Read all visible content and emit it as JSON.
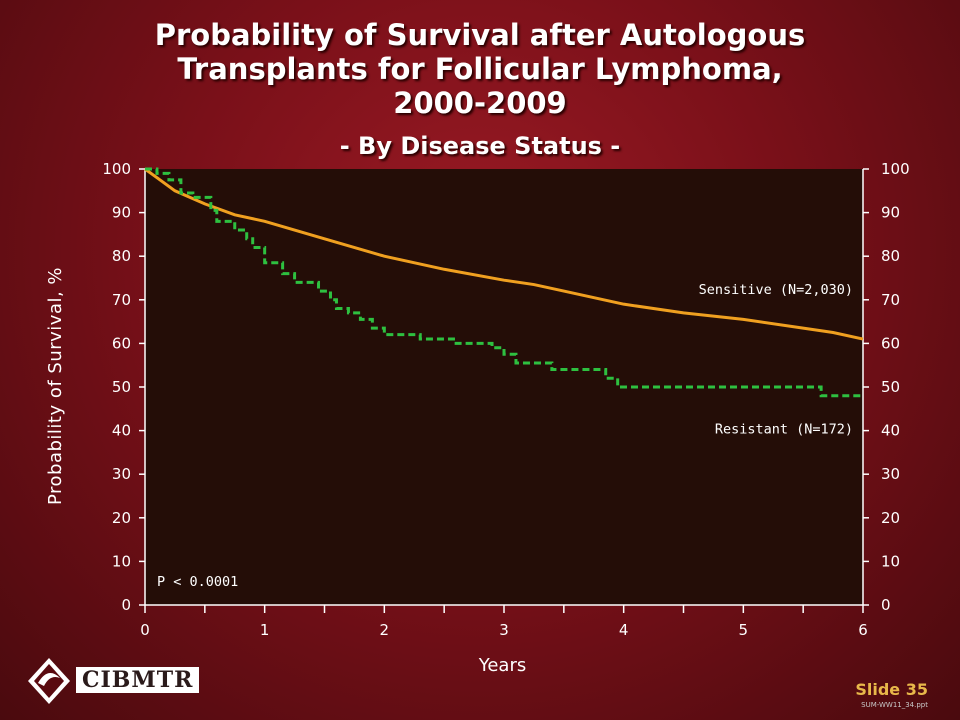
{
  "header": {
    "title_line1": "Probability of Survival after Autologous",
    "title_line2": "Transplants for Follicular Lymphoma,",
    "title_line3": "2000-2009",
    "subtitle": "- By Disease Status -"
  },
  "chart_data": {
    "type": "line",
    "xlabel": "Years",
    "ylabel": "Probability of Survival, %",
    "xlim": [
      0,
      6
    ],
    "ylim": [
      0,
      100
    ],
    "x_ticks": [
      "0",
      "1",
      "2",
      "3",
      "4",
      "5",
      "6"
    ],
    "y_ticks": [
      "0",
      "10",
      "20",
      "30",
      "40",
      "50",
      "60",
      "70",
      "80",
      "90",
      "100"
    ],
    "annotation": "P < 0.0001",
    "series": [
      {
        "name": "Sensitive (N=2,030)",
        "color": "#f0a020",
        "style": "solid",
        "x": [
          0,
          0.1,
          0.25,
          0.5,
          0.75,
          1.0,
          1.25,
          1.5,
          2.0,
          2.5,
          3.0,
          3.25,
          3.5,
          4.0,
          4.5,
          5.0,
          5.5,
          5.75,
          6.0
        ],
        "y": [
          100,
          98,
          95,
          92,
          89.5,
          88,
          86,
          84,
          80,
          77,
          74.5,
          73.5,
          72,
          69,
          67,
          65.5,
          63.5,
          62.5,
          61
        ]
      },
      {
        "name": "Resistant (N=172)",
        "color": "#2ec040",
        "style": "dashed",
        "x": [
          0,
          0.1,
          0.2,
          0.3,
          0.4,
          0.55,
          0.6,
          0.75,
          0.85,
          0.9,
          1.0,
          1.15,
          1.25,
          1.45,
          1.55,
          1.6,
          1.7,
          1.8,
          1.9,
          2.0,
          2.3,
          2.6,
          2.9,
          3.0,
          3.1,
          3.4,
          3.85,
          3.95,
          5.65,
          6.0
        ],
        "y": [
          100,
          99,
          97.5,
          94.5,
          93.5,
          90.5,
          88,
          86,
          84,
          82,
          78.5,
          76,
          74,
          72,
          70,
          68,
          67,
          65.5,
          63.5,
          62,
          61,
          60,
          59,
          57.5,
          55.5,
          54,
          52,
          50,
          48,
          48
        ]
      }
    ]
  },
  "logo": {
    "text": "CIBMTR"
  },
  "footer": {
    "slide": "Slide 35",
    "code": "SUM-WW11_34.ppt"
  }
}
